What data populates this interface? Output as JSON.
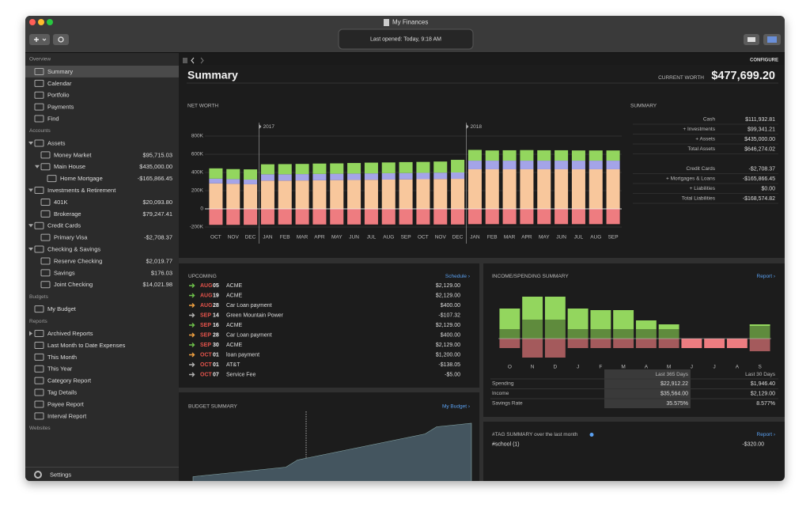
{
  "window": {
    "title": "My Finances",
    "status": "Last opened: Today, 9:18 AM"
  },
  "toolbar": {
    "configure": "CONFIGURE"
  },
  "sidebar": {
    "sections": [
      {
        "title": "Overview",
        "items": [
          {
            "label": "Summary",
            "selected": true
          },
          {
            "label": "Calendar"
          },
          {
            "label": "Portfolio"
          },
          {
            "label": "Payments"
          },
          {
            "label": "Find"
          }
        ]
      },
      {
        "title": "Accounts",
        "items": [
          {
            "label": "Assets",
            "items": [
              {
                "label": "Money Market",
                "amount": "$95,715.03"
              },
              {
                "label": "Main House",
                "amount": "$435,000.00",
                "items": [
                  {
                    "label": "Home Mortgage",
                    "amount": "-$165,866.45"
                  }
                ]
              }
            ]
          },
          {
            "label": "Investments & Retirement",
            "items": [
              {
                "label": "401K",
                "amount": "$20,093.80"
              },
              {
                "label": "Brokerage",
                "amount": "$79,247.41"
              }
            ]
          },
          {
            "label": "Credit Cards",
            "items": [
              {
                "label": "Primary Visa",
                "amount": "-$2,708.37"
              }
            ]
          },
          {
            "label": "Checking & Savings",
            "items": [
              {
                "label": "Reserve Checking",
                "amount": "$2,019.77"
              },
              {
                "label": "Savings",
                "amount": "$176.03"
              },
              {
                "label": "Joint Checking",
                "amount": "$14,021.98"
              }
            ]
          }
        ]
      },
      {
        "title": "Budgets",
        "items": [
          {
            "label": "My Budget"
          }
        ]
      },
      {
        "title": "Reports",
        "items": [
          {
            "label": "Archived Reports",
            "collapsed": true
          },
          {
            "label": "Last Month to Date Expenses"
          },
          {
            "label": "This Month"
          },
          {
            "label": "This Year"
          },
          {
            "label": "Category Report"
          },
          {
            "label": "Tag Details"
          },
          {
            "label": "Payee Report"
          },
          {
            "label": "Interval Report"
          }
        ]
      },
      {
        "title": "Websites"
      }
    ],
    "settings": "Settings"
  },
  "header": {
    "title": "Summary",
    "worth_label": "CURRENT WORTH",
    "worth": "$477,699.20"
  },
  "summary": {
    "title": "SUMMARY",
    "groups": [
      [
        {
          "label": "Cash",
          "value": "$111,932.81"
        },
        {
          "label": "+ Investments",
          "value": "$99,341.21"
        },
        {
          "label": "+ Assets",
          "value": "$435,000.00"
        },
        {
          "label": "Total Assets",
          "value": "$646,274.02"
        }
      ],
      [
        {
          "label": "Credit Cards",
          "value": "-$2,708.37"
        },
        {
          "label": "+ Mortgages & Loans",
          "value": "-$165,866.45"
        },
        {
          "label": "+ Liabilities",
          "value": "$0.00"
        },
        {
          "label": "Total Liabilities",
          "value": "-$168,574.82"
        }
      ]
    ]
  },
  "upcoming": {
    "title": "UPCOMING",
    "link": "Schedule ›",
    "rows": [
      {
        "month": "AUG",
        "day": "05",
        "payee": "ACME",
        "amount": "$2,129.00",
        "icon_color": "#6cc04a"
      },
      {
        "month": "AUG",
        "day": "19",
        "payee": "ACME",
        "amount": "$2,129.00",
        "icon_color": "#6cc04a"
      },
      {
        "month": "AUG",
        "day": "28",
        "payee": "Car  Loan payment",
        "amount": "$400.00",
        "icon_color": "#f0a040"
      },
      {
        "month": "SEP",
        "day": "14",
        "payee": "Green Mountain Power",
        "amount": "-$107.32",
        "icon_color": "#b0b0b0"
      },
      {
        "month": "SEP",
        "day": "16",
        "payee": "ACME",
        "amount": "$2,129.00",
        "icon_color": "#6cc04a"
      },
      {
        "month": "SEP",
        "day": "28",
        "payee": "Car  Loan payment",
        "amount": "$400.00",
        "icon_color": "#f0a040"
      },
      {
        "month": "SEP",
        "day": "30",
        "payee": "ACME",
        "amount": "$2,129.00",
        "icon_color": "#6cc04a"
      },
      {
        "month": "OCT",
        "day": "01",
        "payee": "loan payment",
        "amount": "$1,200.00",
        "icon_color": "#f0a040"
      },
      {
        "month": "OCT",
        "day": "01",
        "payee": "AT&T",
        "amount": "-$138.05",
        "icon_color": "#b0b0b0"
      },
      {
        "month": "OCT",
        "day": "07",
        "payee": "Service Fee",
        "amount": "-$5.00",
        "icon_color": "#b0b0b0"
      }
    ]
  },
  "income_spending": {
    "link": "Report ›",
    "columns": [
      "Last 365 Days",
      "Last 30 Days"
    ],
    "rows": [
      {
        "label": "Spending",
        "values": [
          "$22,912.22",
          "$1,946.40"
        ]
      },
      {
        "label": "Income",
        "values": [
          "$35,564.00",
          "$2,129.00"
        ]
      },
      {
        "label": "Savings Rate",
        "values": [
          "35.575%",
          "8.577%"
        ]
      }
    ]
  },
  "budget": {
    "link": "My Budget ›"
  },
  "tags": {
    "title": "#TAG SUMMARY over the last month",
    "link": "Report ›",
    "rows": [
      {
        "label": "#school (1)",
        "value": "-$320.00"
      }
    ]
  },
  "chart_data": [
    {
      "type": "stacked_bar",
      "title": "NET WORTH",
      "categories": [
        "OCT",
        "NOV",
        "DEC",
        "JAN",
        "FEB",
        "MAR",
        "APR",
        "MAY",
        "JUN",
        "JUL",
        "AUG",
        "SEP",
        "OCT",
        "NOV",
        "DEC",
        "JAN",
        "FEB",
        "MAR",
        "APR",
        "MAY",
        "JUN",
        "JUL",
        "AUG",
        "SEP"
      ],
      "year_markers": [
        {
          "label": "2017",
          "category_index": 3
        },
        {
          "label": "2018",
          "category_index": 15
        }
      ],
      "series": [
        {
          "color": "#f8c79c",
          "values": [
            280,
            275,
            270,
            310,
            310,
            312,
            314,
            316,
            318,
            320,
            322,
            324,
            326,
            328,
            330,
            435,
            435,
            435,
            435,
            435,
            435,
            435,
            435,
            435
          ]
        },
        {
          "color": "#a4a4e8",
          "values": [
            52,
            52,
            52,
            70,
            70,
            70,
            70,
            70,
            70,
            70,
            70,
            70,
            70,
            70,
            70,
            95,
            95,
            95,
            95,
            95,
            95,
            95,
            95,
            95
          ]
        },
        {
          "color": "#93d65e",
          "values": [
            113,
            110,
            112,
            110,
            112,
            112,
            114,
            114,
            116,
            118,
            118,
            120,
            120,
            122,
            139,
            118,
            112,
            114,
            116,
            114,
            114,
            112,
            112,
            112
          ]
        },
        {
          "color": "#ee7c80",
          "values": [
            -176,
            -176,
            -176,
            -172,
            -172,
            -172,
            -172,
            -172,
            -172,
            -172,
            -172,
            -172,
            -172,
            -172,
            -172,
            -168,
            -168,
            -168,
            -168,
            -168,
            -168,
            -168,
            -168,
            -168
          ]
        }
      ],
      "ylim": [
        -200,
        800
      ],
      "yticks": [
        {
          "value": -200,
          "label": "-200K"
        },
        0,
        {
          "value": 200,
          "label": "200K"
        },
        {
          "value": 400,
          "label": "400K"
        },
        {
          "value": 600,
          "label": "600K"
        },
        {
          "value": 800,
          "label": "800K"
        }
      ],
      "grid": true
    },
    {
      "type": "diverging_bar",
      "title": "INCOME/SPENDING SUMMARY",
      "categories": [
        "O",
        "N",
        "D",
        "J",
        "F",
        "M",
        "A",
        "M",
        "J",
        "J",
        "A",
        "S"
      ],
      "series": [
        {
          "color": "#93d65e",
          "values": [
            2660,
            3710,
            3710,
            2660,
            2520,
            2520,
            1610,
            1260,
            0,
            0,
            0,
            1260
          ]
        },
        {
          "color": "#ee7c80",
          "values": [
            -840,
            -1680,
            -1680,
            -840,
            -840,
            -840,
            -840,
            -840,
            -840,
            -840,
            -840,
            -1120
          ]
        }
      ]
    },
    {
      "type": "area",
      "title": "BUDGET SUMMARY",
      "color": "#44555f",
      "values": [
        6,
        8,
        10,
        12,
        14,
        16,
        18,
        20,
        22,
        34,
        38,
        42,
        46,
        50,
        54,
        58,
        62,
        66,
        70,
        74,
        78,
        90,
        92,
        94,
        96
      ]
    }
  ]
}
